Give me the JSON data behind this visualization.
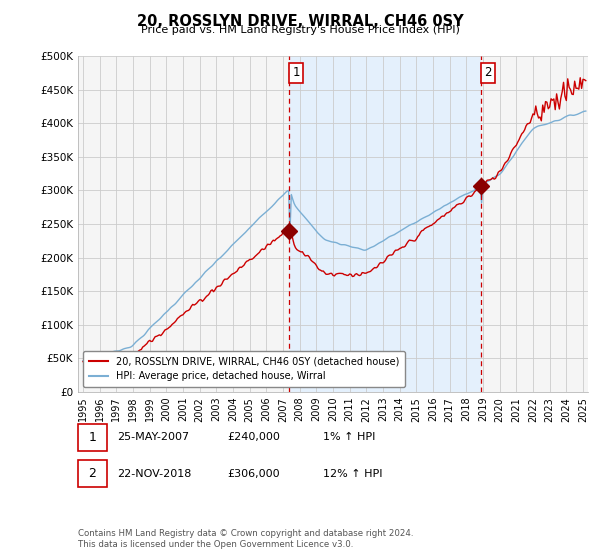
{
  "title": "20, ROSSLYN DRIVE, WIRRAL, CH46 0SY",
  "subtitle": "Price paid vs. HM Land Registry's House Price Index (HPI)",
  "ylabel_ticks": [
    "£0",
    "£50K",
    "£100K",
    "£150K",
    "£200K",
    "£250K",
    "£300K",
    "£350K",
    "£400K",
    "£450K",
    "£500K"
  ],
  "ytick_values": [
    0,
    50000,
    100000,
    150000,
    200000,
    250000,
    300000,
    350000,
    400000,
    450000,
    500000
  ],
  "xlim_left": 1994.7,
  "xlim_right": 2025.3,
  "ylim": [
    0,
    500000
  ],
  "hpi_color": "#7bafd4",
  "price_color": "#cc0000",
  "marker_color": "#8b0000",
  "purchase1_x": 2007.38,
  "purchase1_y": 240000,
  "purchase2_x": 2018.89,
  "purchase2_y": 306000,
  "shade_color": "#ddeeff",
  "legend_line1": "20, ROSSLYN DRIVE, WIRRAL, CH46 0SY (detached house)",
  "legend_line2": "HPI: Average price, detached house, Wirral",
  "footnote": "Contains HM Land Registry data © Crown copyright and database right 2024.\nThis data is licensed under the Open Government Licence v3.0.",
  "bg_color": "#ffffff",
  "plot_bg_color": "#f5f5f5",
  "grid_color": "#cccccc",
  "label_box_color": "#cc0000",
  "dashed_color": "#cc0000"
}
